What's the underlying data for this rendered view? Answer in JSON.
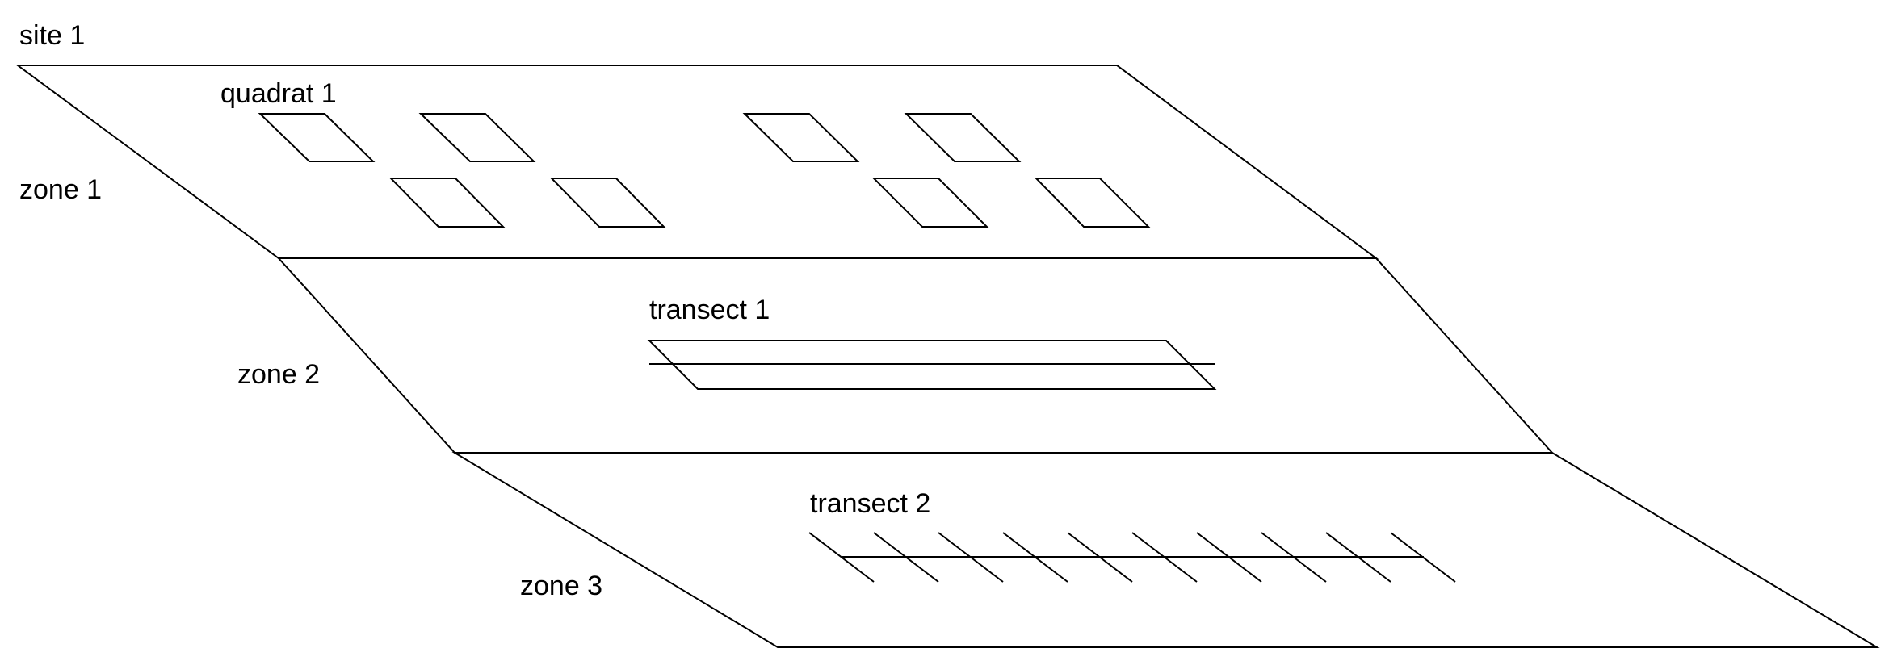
{
  "labels": {
    "site": "site 1",
    "zone1": "zone 1",
    "zone2": "zone 2",
    "zone3": "zone 3",
    "quadrat": "quadrat 1",
    "transect1": "transect 1",
    "transect2": "transect 2"
  },
  "counts": {
    "quadrats": 8,
    "transect2_ticks": 10
  },
  "colors": {
    "line": "#000000",
    "text": "#000000",
    "background": "#ffffff"
  }
}
